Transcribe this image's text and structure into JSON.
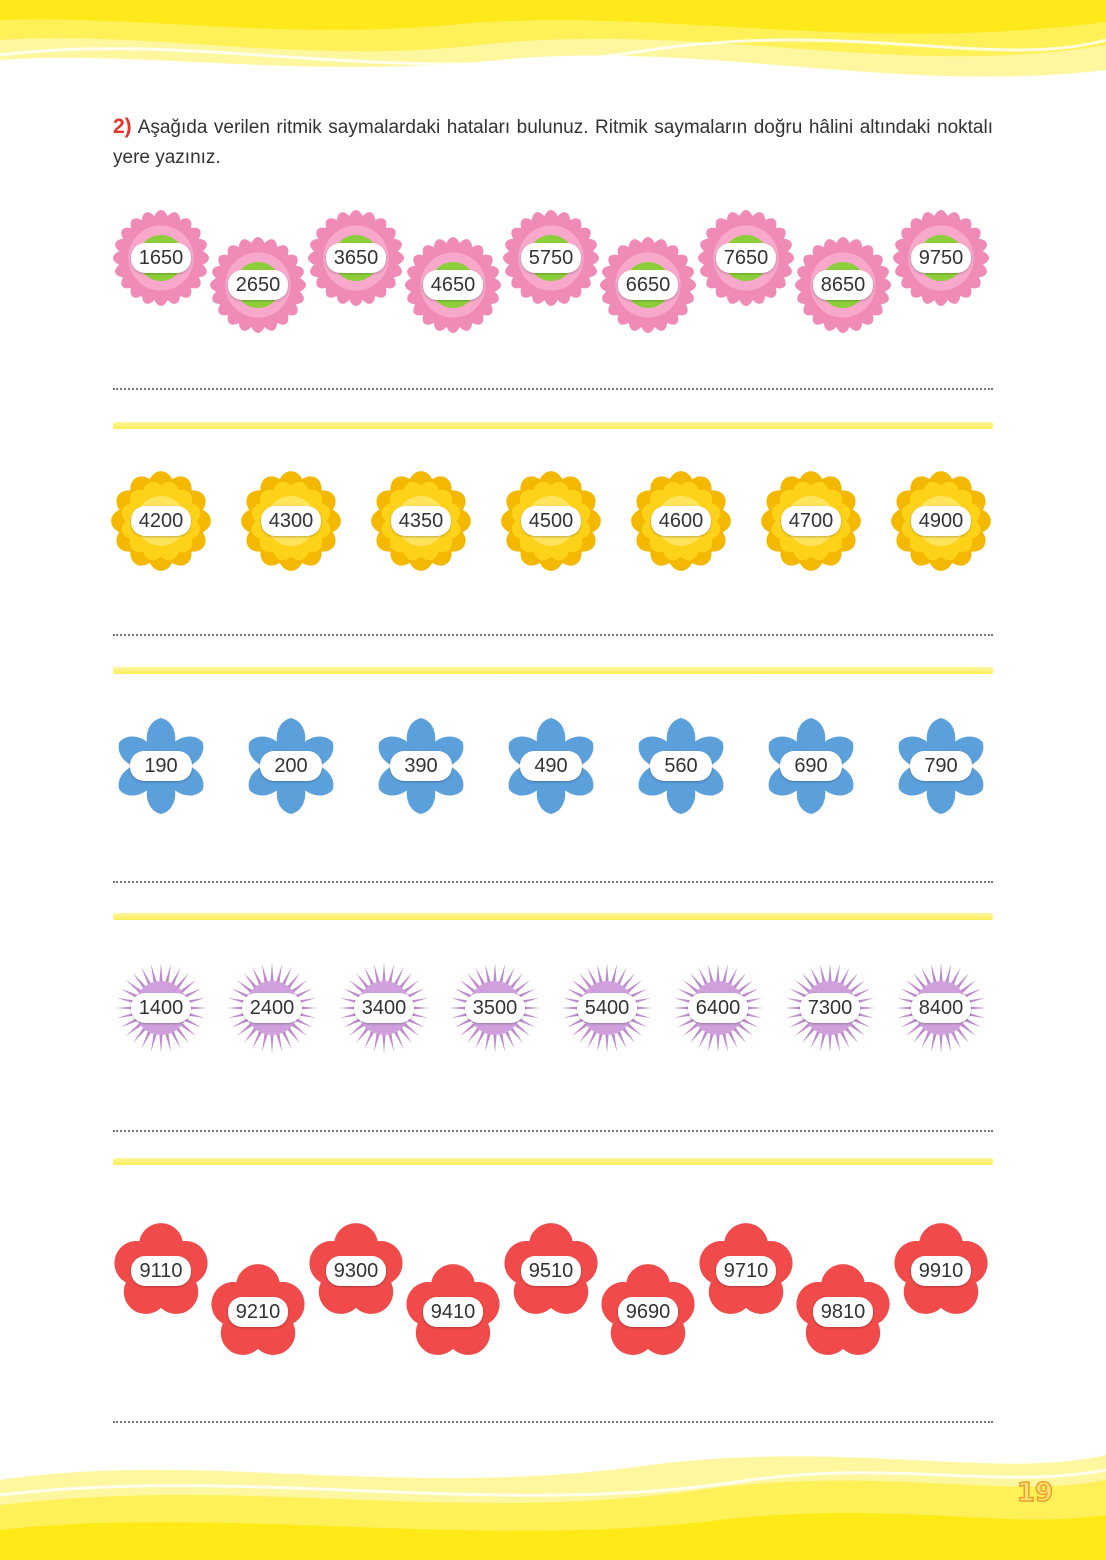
{
  "question": {
    "number": "2)",
    "text": "Aşağıda verilen ritmik saymalardaki hataları bulunuz. Ritmik saymaların doğru hâlini altındaki noktalı yere yazınız."
  },
  "rows": {
    "pink": [
      "1650",
      "2650",
      "3650",
      "4650",
      "5750",
      "6650",
      "7650",
      "8650",
      "9750"
    ],
    "yellow": [
      "4200",
      "4300",
      "4350",
      "4500",
      "4600",
      "4700",
      "4900"
    ],
    "blue": [
      "190",
      "200",
      "390",
      "490",
      "560",
      "690",
      "790"
    ],
    "purple": [
      "1400",
      "2400",
      "3400",
      "3500",
      "5400",
      "6400",
      "7300",
      "8400"
    ],
    "red": [
      "9110",
      "9210",
      "9300",
      "9410",
      "9510",
      "9690",
      "9710",
      "9810",
      "9910"
    ]
  },
  "colors": {
    "pink": "#f08bb8",
    "yellow": "#ffd21a",
    "blue": "#5b9fdb",
    "purple": "#c08ad0",
    "red": "#f04a4a",
    "accent": "#e8342c",
    "wave": "#fff04a"
  },
  "page_number": "19"
}
